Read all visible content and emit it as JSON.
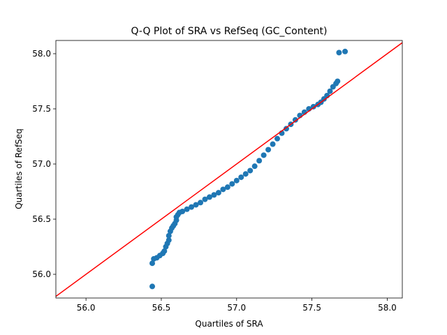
{
  "chart_data": {
    "type": "scatter",
    "title": "Q-Q Plot of SRA vs RefSeq (GC_Content)",
    "x_label": "Quartiles of SRA",
    "y_label": "Quartiles of RefSeq",
    "color": "#1f77b4",
    "x": [
      56.44,
      56.44,
      56.45,
      56.47,
      56.49,
      56.51,
      56.52,
      56.53,
      56.54,
      56.55,
      56.55,
      56.56,
      56.57,
      56.58,
      56.59,
      56.6,
      56.6,
      56.61,
      56.62,
      56.64,
      56.67,
      56.7,
      56.73,
      56.76,
      56.79,
      56.82,
      56.85,
      56.88,
      56.91,
      56.94,
      56.97,
      57.0,
      57.03,
      57.06,
      57.09,
      57.12,
      57.15,
      57.18,
      57.21,
      57.24,
      57.27,
      57.3,
      57.33,
      57.36,
      57.39,
      57.42,
      57.45,
      57.48,
      57.51,
      57.54,
      57.56,
      57.58,
      57.6,
      57.62,
      57.64,
      57.66,
      57.67,
      57.68,
      57.72
    ],
    "values": [
      55.89,
      56.1,
      56.14,
      56.15,
      56.17,
      56.19,
      56.21,
      56.25,
      56.28,
      56.31,
      56.35,
      56.39,
      56.42,
      56.44,
      56.46,
      56.49,
      56.52,
      56.54,
      56.56,
      56.57,
      56.59,
      56.61,
      56.63,
      56.65,
      56.68,
      56.7,
      56.72,
      56.74,
      56.77,
      56.79,
      56.82,
      56.85,
      56.88,
      56.91,
      56.94,
      56.98,
      57.03,
      57.08,
      57.13,
      57.18,
      57.23,
      57.28,
      57.32,
      57.36,
      57.4,
      57.44,
      57.47,
      57.5,
      57.52,
      57.54,
      57.56,
      57.59,
      57.62,
      57.66,
      57.7,
      57.73,
      57.75,
      58.01,
      58.02
    ],
    "reference_line": {
      "x": [
        55.8,
        58.1
      ],
      "y": [
        55.8,
        58.1
      ],
      "color": "red"
    },
    "xlim": [
      55.8,
      58.1
    ],
    "ylim": [
      55.785,
      58.12
    ],
    "xticks": [
      {
        "value": 56,
        "label": "56.0"
      },
      56.5,
      {
        "value": 57,
        "label": "57.0"
      },
      57.5,
      {
        "value": 58,
        "label": "58.0"
      }
    ],
    "yticks": [
      {
        "value": 56,
        "label": "56.0"
      },
      56.5,
      {
        "value": 57,
        "label": "57.0"
      },
      57.5,
      {
        "value": 58,
        "label": "58.0"
      }
    ]
  }
}
